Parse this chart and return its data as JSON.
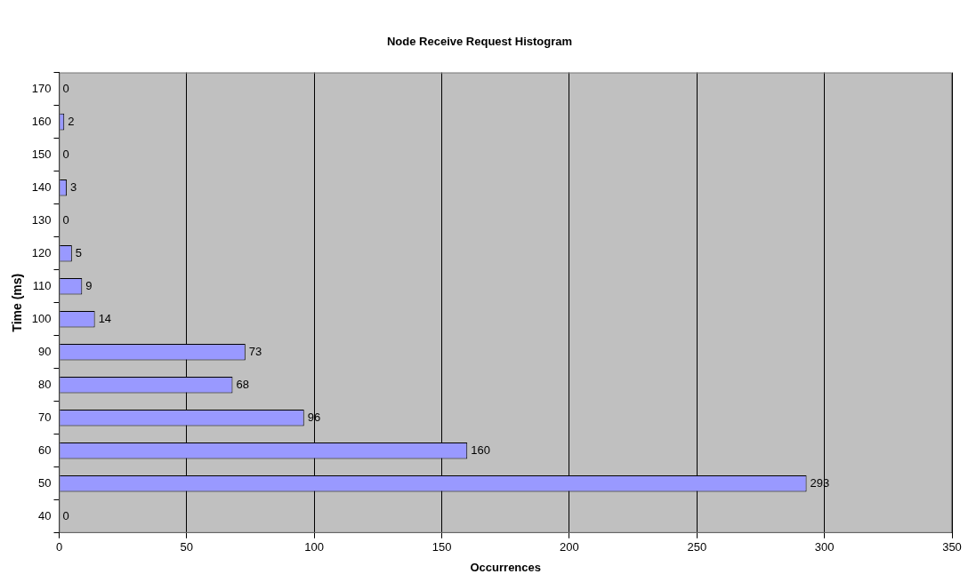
{
  "chart_data": {
    "type": "bar",
    "orientation": "horizontal",
    "title": "Node Receive Request Histogram",
    "xlabel": "Occurrences",
    "ylabel": "Time (ms)",
    "categories": [
      "170",
      "160",
      "150",
      "140",
      "130",
      "120",
      "110",
      "100",
      "90",
      "80",
      "70",
      "60",
      "50",
      "40"
    ],
    "values": [
      0,
      2,
      0,
      3,
      0,
      5,
      9,
      14,
      73,
      68,
      96,
      160,
      293,
      0
    ],
    "color": "#9999ff",
    "xlim": [
      0,
      350
    ],
    "xticks": [
      0,
      50,
      100,
      150,
      200,
      250,
      300,
      350
    ],
    "grid": "x",
    "legend": false,
    "data_labels": true
  }
}
